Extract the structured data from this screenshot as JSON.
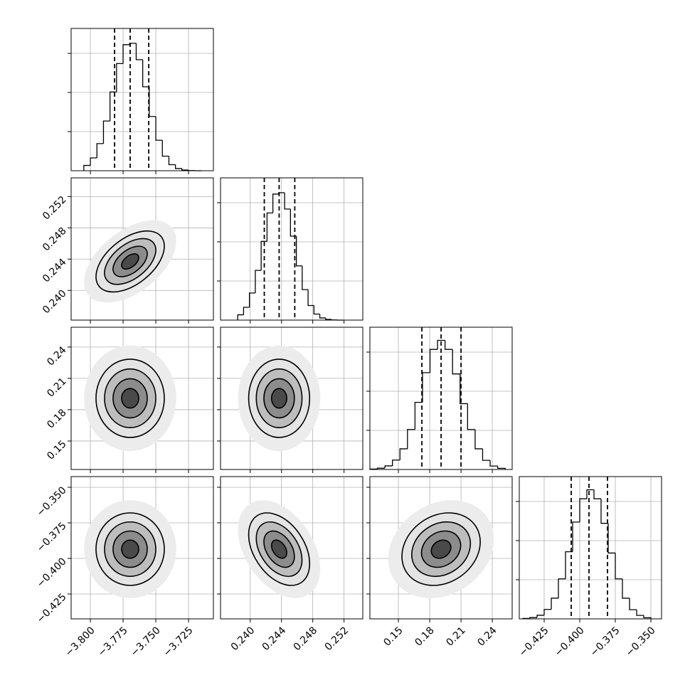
{
  "chart_data": {
    "type": "corner",
    "grid": true,
    "color": "#000000",
    "hist_ylim": [
      0,
      3636
    ],
    "hist_yticks": [
      1000,
      2000,
      3000
    ],
    "contour_levels": [
      0.5,
      1,
      1.5,
      2
    ],
    "parameters": [
      {
        "xlim": [
          -3.8147,
          -3.706
        ],
        "xticks": [
          {
            "value": -3.8,
            "label": "−3.800"
          },
          {
            "value": -3.775,
            "label": "−3.775"
          },
          {
            "value": -3.75,
            "label": "−3.750"
          },
          {
            "value": -3.725,
            "label": "−3.725"
          }
        ],
        "quantiles": [
          -3.7815,
          -3.7696,
          -3.7554
        ],
        "bins": [
          -3.805,
          -3.8,
          -3.795,
          -3.79,
          -3.785,
          -3.78,
          -3.775,
          -3.77,
          -3.765,
          -3.76,
          -3.755,
          -3.75,
          -3.745,
          -3.74,
          -3.735,
          -3.73,
          -3.725,
          -3.72,
          -3.715
        ],
        "counts": [
          135,
          327,
          693,
          1270,
          2013,
          2739,
          3221,
          3257,
          2838,
          2145,
          1386,
          779,
          373,
          155,
          56,
          17,
          3,
          0
        ]
      },
      {
        "xlim": [
          0.2362,
          0.2544
        ],
        "xticks": [
          {
            "value": 0.24,
            "label": "0.240"
          },
          {
            "value": 0.244,
            "label": "0.244"
          },
          {
            "value": 0.248,
            "label": "0.248"
          },
          {
            "value": 0.252,
            "label": "0.252"
          }
        ],
        "quantiles": [
          0.2418,
          0.2437,
          0.2457
        ],
        "bins": [
          0.2384,
          0.23915,
          0.2399,
          0.24065,
          0.2414,
          0.24215,
          0.2429,
          0.24365,
          0.2444,
          0.24515,
          0.2459,
          0.24665,
          0.2474,
          0.24815,
          0.2489,
          0.24965,
          0.2504,
          0.25115,
          0.2519
        ],
        "counts": [
          135,
          327,
          693,
          1270,
          2013,
          2739,
          3221,
          3257,
          2838,
          2145,
          1386,
          779,
          373,
          155,
          56,
          17,
          3,
          0
        ]
      },
      {
        "xlim": [
          0.1227,
          0.259
        ],
        "xticks": [
          0.15,
          0.18,
          0.21,
          0.24
        ],
        "quantiles": [
          0.1725,
          0.1909,
          0.21
        ],
        "bins": [
          0.1227,
          0.1299,
          0.1371,
          0.1443,
          0.1515,
          0.1587,
          0.1659,
          0.1731,
          0.1803,
          0.1875,
          0.1947,
          0.2019,
          0.2091,
          0.2163,
          0.2235,
          0.2307,
          0.2379,
          0.2451,
          0.2523
        ],
        "counts": [
          10,
          33,
          92,
          241,
          528,
          1023,
          1716,
          2475,
          3069,
          3300,
          3069,
          2442,
          1683,
          1023,
          528,
          234,
          89,
          30
        ]
      },
      {
        "xlim": [
          -0.4425,
          -0.3425
        ],
        "xticks": [
          {
            "value": -0.425,
            "label": "−0.425"
          },
          {
            "value": -0.4,
            "label": "−0.400"
          },
          {
            "value": -0.375,
            "label": "−0.375"
          },
          {
            "value": -0.35,
            "label": "−0.350"
          }
        ],
        "quantiles": [
          -0.406,
          -0.3935,
          -0.3805
        ],
        "bins": [
          -0.44,
          -0.435,
          -0.43,
          -0.425,
          -0.42,
          -0.415,
          -0.41,
          -0.405,
          -0.4,
          -0.395,
          -0.39,
          -0.385,
          -0.38,
          -0.375,
          -0.37,
          -0.365,
          -0.36,
          -0.355,
          -0.35
        ],
        "counts": [
          10,
          33,
          92,
          241,
          528,
          1023,
          1716,
          2475,
          3069,
          3300,
          3069,
          2442,
          1683,
          1023,
          528,
          234,
          89,
          30
        ]
      }
    ],
    "correlations": [
      {
        "pair": [
          1,
          0
        ],
        "value": 0.5
      },
      {
        "pair": [
          2,
          0
        ],
        "value": 0
      },
      {
        "pair": [
          2,
          1
        ],
        "value": 0
      },
      {
        "pair": [
          3,
          0
        ],
        "value": 0
      },
      {
        "pair": [
          3,
          1
        ],
        "value": -0.4
      },
      {
        "pair": [
          3,
          2
        ],
        "value": 0.2
      }
    ]
  }
}
